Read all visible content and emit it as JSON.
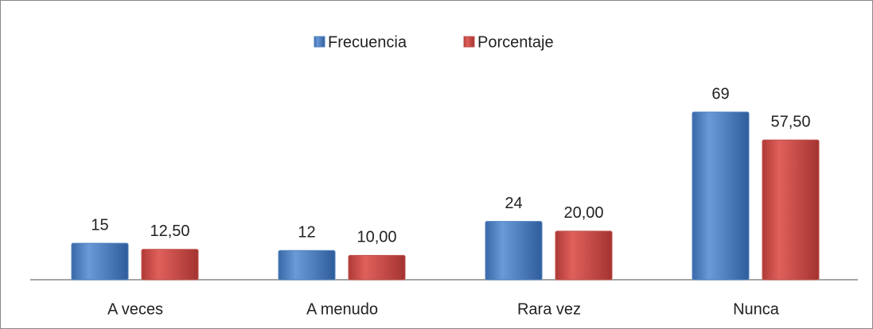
{
  "chart_data": {
    "type": "bar",
    "categories": [
      "A veces",
      "A menudo",
      "Rara vez",
      "Nunca"
    ],
    "series": [
      {
        "name": "Frecuencia",
        "color": "#4f81bd",
        "values": [
          15,
          12,
          24,
          69
        ]
      },
      {
        "name": "Porcentaje",
        "color": "#c0504d",
        "values": [
          12.5,
          10,
          20,
          57.5
        ],
        "value_labels": [
          "12,50",
          "10,00",
          "20,00",
          "57,50"
        ]
      }
    ],
    "legend": "top"
  }
}
